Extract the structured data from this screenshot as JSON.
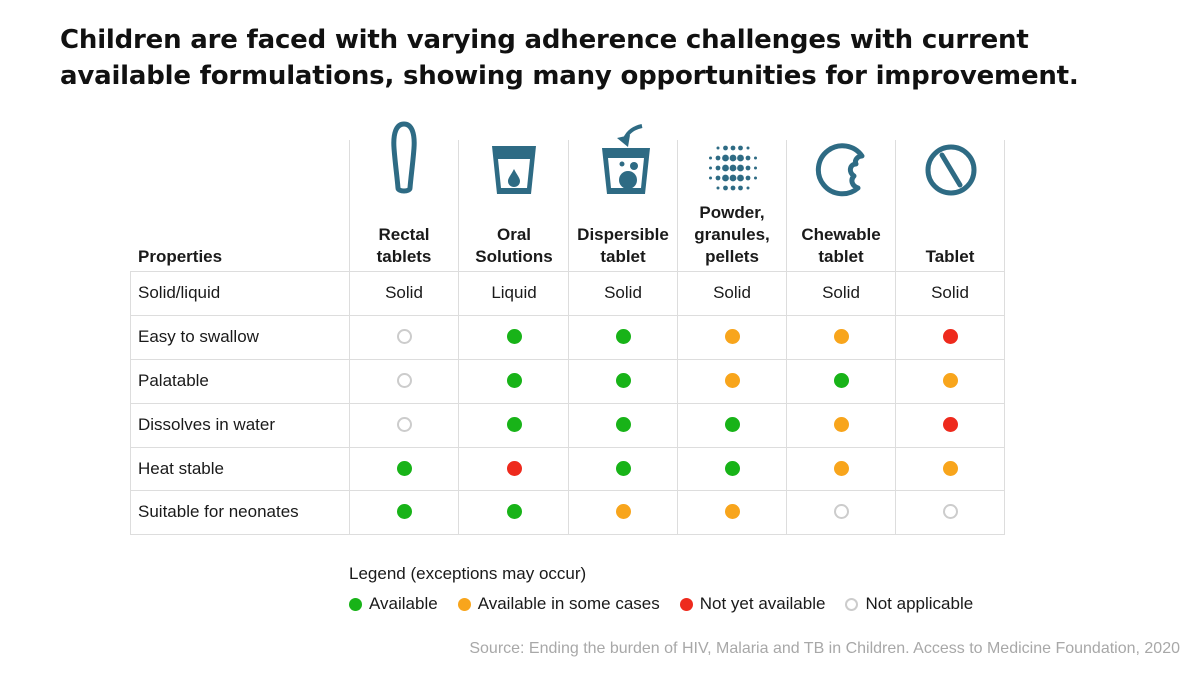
{
  "title": "Children are faced with varying adherence challenges with current available formulations, showing many opportunities for improvement.",
  "table": {
    "properties_header": "Properties",
    "columns": [
      {
        "label_lines": [
          "Rectal",
          "tablets"
        ],
        "icon": "rectal-tablet-icon"
      },
      {
        "label_lines": [
          "Oral",
          "Solutions"
        ],
        "icon": "oral-solution-cup-icon"
      },
      {
        "label_lines": [
          "Dispersible",
          "tablet"
        ],
        "icon": "dispersible-tablet-glass-icon"
      },
      {
        "label_lines": [
          "Powder,",
          "granules,",
          "pellets"
        ],
        "icon": "powder-granules-icon"
      },
      {
        "label_lines": [
          "Chewable",
          "tablet"
        ],
        "icon": "chewable-tablet-icon"
      },
      {
        "label_lines": [
          "Tablet"
        ],
        "icon": "tablet-icon"
      }
    ],
    "solid_liquid_row": {
      "label": "Solid/liquid",
      "values": [
        "Solid",
        "Liquid",
        "Solid",
        "Solid",
        "Solid",
        "Solid"
      ]
    },
    "rows": [
      {
        "label": "Easy to swallow",
        "statuses": [
          "na",
          "available",
          "available",
          "some",
          "some",
          "notyet"
        ]
      },
      {
        "label": "Palatable",
        "statuses": [
          "na",
          "available",
          "available",
          "some",
          "available",
          "some"
        ]
      },
      {
        "label": "Dissolves in water",
        "statuses": [
          "na",
          "available",
          "available",
          "available",
          "some",
          "notyet"
        ]
      },
      {
        "label": "Heat stable",
        "statuses": [
          "available",
          "notyet",
          "available",
          "available",
          "some",
          "some"
        ]
      },
      {
        "label": "Suitable for neonates",
        "statuses": [
          "available",
          "available",
          "some",
          "some",
          "na",
          "na"
        ]
      }
    ]
  },
  "legend": {
    "title": "Legend (exceptions may occur)",
    "items": [
      {
        "key": "available",
        "label": "Available"
      },
      {
        "key": "some",
        "label": "Available in some cases"
      },
      {
        "key": "notyet",
        "label": "Not yet available"
      },
      {
        "key": "na",
        "label": "Not applicable"
      }
    ]
  },
  "colors": {
    "available": "#18b318",
    "some": "#f8a51c",
    "notyet": "#ee2a1d",
    "na": "#cccccc",
    "icon": "#2e6b84"
  },
  "source": "Source: Ending the burden of HIV, Malaria and TB in Children. Access to Medicine Foundation, 2020"
}
